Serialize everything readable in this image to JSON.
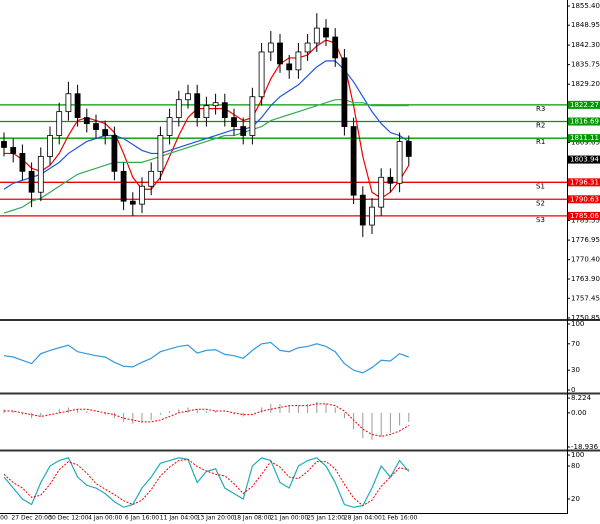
{
  "chart_data": [
    {
      "type": "candlestick",
      "categories": [
        "00",
        null,
        null,
        "27 Dec 20:00",
        null,
        null,
        null,
        "30 Dec 12:00",
        null,
        null,
        null,
        "4 Jan 00:00",
        null,
        null,
        null,
        "6 Jan 16:00",
        null,
        null,
        null,
        "11 Jan 04:00",
        null,
        null,
        null,
        "13 Jan 20:00",
        null,
        null,
        null,
        "18 Jan 08:00",
        null,
        null,
        null,
        "21 Jan 00:00",
        null,
        null,
        null,
        "25 Jan 12:00",
        null,
        null,
        null,
        "28 Jan 04:00",
        null,
        null,
        null,
        "1 Feb 16:00",
        null
      ],
      "open": [
        1810,
        1808,
        1806,
        1800,
        1793,
        1805,
        1812,
        1820,
        1826,
        1818,
        1816,
        1814,
        1812,
        1800,
        1790,
        1789,
        1795,
        1800,
        1812,
        1818,
        1824,
        1826,
        1818,
        1822,
        1823,
        1818,
        1815,
        1812,
        1825,
        1840,
        1843,
        1836,
        1834,
        1840,
        1843,
        1848,
        1845,
        1838,
        1815,
        1792,
        1782,
        1788,
        1798,
        1796,
        1810
      ],
      "high": [
        1813,
        1811,
        1809,
        1803,
        1808,
        1815,
        1823,
        1830,
        1829,
        1821,
        1819,
        1817,
        1815,
        1803,
        1793,
        1798,
        1803,
        1815,
        1821,
        1827,
        1829,
        1829,
        1825,
        1826,
        1826,
        1821,
        1818,
        1828,
        1843,
        1847,
        1846,
        1839,
        1843,
        1846,
        1853,
        1851,
        1848,
        1841,
        1818,
        1795,
        1791,
        1801,
        1801,
        1813,
        1812
      ],
      "low": [
        1805,
        1803,
        1797,
        1788,
        1790,
        1802,
        1809,
        1817,
        1815,
        1813,
        1811,
        1809,
        1797,
        1787,
        1785,
        1786,
        1792,
        1797,
        1809,
        1815,
        1821,
        1815,
        1815,
        1819,
        1815,
        1812,
        1809,
        1809,
        1822,
        1837,
        1833,
        1831,
        1831,
        1837,
        1840,
        1842,
        1835,
        1812,
        1789,
        1778,
        1779,
        1785,
        1793,
        1793,
        1802
      ],
      "close": [
        1808,
        1806,
        1800,
        1793,
        1805,
        1812,
        1820,
        1826,
        1818,
        1816,
        1814,
        1812,
        1800,
        1790,
        1789,
        1795,
        1800,
        1812,
        1818,
        1824,
        1826,
        1818,
        1822,
        1823,
        1818,
        1815,
        1812,
        1825,
        1840,
        1843,
        1836,
        1834,
        1840,
        1843,
        1848,
        1845,
        1838,
        1815,
        1792,
        1782,
        1788,
        1798,
        1796,
        1810,
        1805
      ],
      "series": [
        {
          "color": "#ee0000",
          "values": [
            1806,
            1806,
            1804,
            1801,
            1800,
            1802,
            1806,
            1812,
            1817,
            1818,
            1817,
            1816,
            1813,
            1806,
            1798,
            1794,
            1794,
            1798,
            1805,
            1812,
            1818,
            1821,
            1821,
            1821,
            1821,
            1819,
            1817,
            1818,
            1824,
            1831,
            1836,
            1838,
            1838,
            1839,
            1842,
            1844,
            1843,
            1836,
            1822,
            1805,
            1793,
            1791,
            1793,
            1797,
            1802
          ]
        },
        {
          "color": "#2255dd",
          "values": [
            1794,
            1796,
            1797,
            1798,
            1799,
            1801,
            1803,
            1806,
            1808,
            1810,
            1811,
            1812,
            1812,
            1811,
            1809,
            1807,
            1806,
            1806,
            1807,
            1808,
            1809,
            1810,
            1811,
            1812,
            1813,
            1814,
            1814,
            1815,
            1818,
            1822,
            1825,
            1827,
            1829,
            1832,
            1835,
            1837,
            1837,
            1834,
            1830,
            1825,
            1820,
            1816,
            1813,
            1812,
            1810
          ]
        },
        {
          "color": "#33aa55",
          "values": [
            1786,
            1787,
            1788,
            1790,
            1791,
            1793,
            1795,
            1797,
            1799,
            1800,
            1801,
            1802,
            1803,
            1803,
            1803,
            1803,
            1804,
            1805,
            1806,
            1807,
            1808,
            1809,
            1810,
            1811,
            1812,
            1812,
            1813,
            1814,
            1815,
            1817,
            1818,
            1819,
            1820,
            1821,
            1822,
            1823,
            1824,
            1824,
            1823,
            1823,
            1822,
            1822,
            1822,
            1822,
            1822
          ]
        }
      ],
      "levels": [
        {
          "label": "R3",
          "value": 1822.27,
          "color": "#009900"
        },
        {
          "label": "R2",
          "value": 1816.69,
          "color": "#009900"
        },
        {
          "label": "R1",
          "value": 1811.11,
          "color": "#009900"
        },
        {
          "label": "S1",
          "value": 1796.31,
          "color": "#ee0000"
        },
        {
          "label": "S2",
          "value": 1790.63,
          "color": "#ee0000"
        },
        {
          "label": "S3",
          "value": 1785.06,
          "color": "#ee0000"
        }
      ],
      "last": 1803.94,
      "ylim": [
        1750.85,
        1857.41
      ],
      "yticks": [
        {
          "value": 1855.4,
          "label": "1855.40"
        },
        1848.95,
        {
          "value": 1842.3,
          "label": "1842.30"
        },
        1835.75,
        {
          "value": 1829.2,
          "label": "1829.20"
        },
        1809.65,
        1783.55,
        1776.95,
        {
          "value": 1770.4,
          "label": "1770.40"
        },
        {
          "value": 1763.9,
          "label": "1763.90"
        },
        1757.45,
        1750.85
      ]
    },
    {
      "type": "line",
      "ylim": [
        -3,
        103
      ],
      "yticks": [
        100,
        70,
        30,
        0
      ],
      "series": [
        {
          "color": "#3399dd",
          "values": [
            52,
            50,
            45,
            40,
            55,
            60,
            64,
            68,
            58,
            55,
            52,
            50,
            42,
            36,
            35,
            42,
            48,
            58,
            62,
            66,
            68,
            56,
            60,
            61,
            54,
            52,
            48,
            60,
            70,
            72,
            60,
            58,
            64,
            66,
            70,
            66,
            58,
            40,
            30,
            26,
            34,
            45,
            44,
            55,
            50
          ]
        }
      ]
    },
    {
      "type": "bar",
      "ylim": [
        -20.6,
        9.9
      ],
      "yticks": [
        8.224,
        {
          "value": 0,
          "label": "0.00"
        },
        -18.936
      ],
      "color": "#999999",
      "values": [
        2,
        1,
        -1,
        -3,
        -2,
        0,
        2,
        3,
        2,
        1,
        0,
        -1,
        -3,
        -5,
        -6,
        -5,
        -4,
        -1,
        1,
        2,
        3,
        2,
        1,
        1,
        0,
        -1,
        -2,
        0,
        3,
        5,
        5,
        4,
        4,
        5,
        6,
        5,
        3,
        -3,
        -9,
        -14,
        -15,
        -13,
        -11,
        -7,
        -5
      ],
      "series": [
        {
          "color": "#ee0000",
          "dash": true,
          "values": [
            1,
            1,
            0,
            -1,
            -2,
            -1,
            0,
            1,
            2,
            2,
            1,
            0,
            -1,
            -3,
            -4,
            -5,
            -5,
            -4,
            -2,
            0,
            1,
            2,
            2,
            1,
            1,
            0,
            -1,
            -1,
            1,
            2,
            3,
            4,
            4,
            4,
            5,
            5,
            4,
            1,
            -4,
            -9,
            -12,
            -13,
            -12,
            -10,
            -7
          ]
        }
      ]
    },
    {
      "type": "line",
      "ylim": [
        -3.6,
        105.5
      ],
      "yticks": [
        100,
        80,
        20
      ],
      "series": [
        {
          "color": "#22aabb",
          "values": [
            60,
            40,
            20,
            10,
            50,
            80,
            90,
            95,
            60,
            45,
            40,
            30,
            15,
            5,
            10,
            40,
            60,
            85,
            90,
            95,
            92,
            50,
            70,
            75,
            40,
            30,
            20,
            80,
            95,
            90,
            50,
            40,
            80,
            90,
            95,
            80,
            50,
            10,
            5,
            8,
            40,
            80,
            60,
            90,
            70
          ]
        },
        {
          "color": "#ee0000",
          "dash": true,
          "values": [
            65,
            50,
            40,
            23,
            27,
            47,
            73,
            88,
            82,
            67,
            48,
            38,
            28,
            17,
            10,
            18,
            37,
            62,
            78,
            90,
            92,
            79,
            71,
            65,
            62,
            48,
            30,
            43,
            65,
            88,
            78,
            60,
            57,
            70,
            88,
            88,
            75,
            47,
            22,
            8,
            18,
            43,
            60,
            77,
            73
          ]
        }
      ]
    }
  ]
}
